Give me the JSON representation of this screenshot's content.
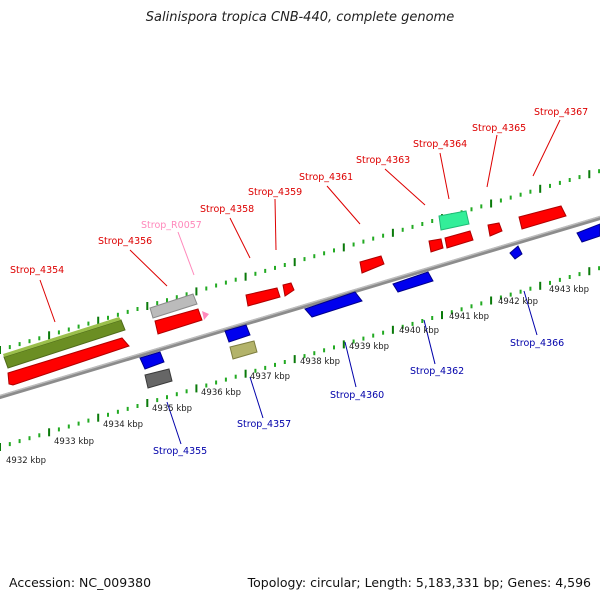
{
  "title": "Salinispora tropica CNB-440, complete genome",
  "footer": {
    "accession": "Accession: NC_009380",
    "summary": "Topology: circular; Length: 5,183,331 bp; Genes: 4,596"
  },
  "colors": {
    "forward": "#ff0000",
    "reverse": "#0000ee",
    "rna": "#ff88bb",
    "selected": "#33ee99",
    "highlight": "#6b8e23",
    "backbone": "#999999",
    "ruler": "#119911"
  },
  "scale_labels": [
    "4932 kbp",
    "4933 kbp",
    "4934 kbp",
    "4935 kbp",
    "4936 kbp",
    "4937 kbp",
    "4938 kbp",
    "4939 kbp",
    "4940 kbp",
    "4941 kbp",
    "4942 kbp",
    "4943 kbp"
  ],
  "forward_labels": [
    "Strop_4354",
    "Strop_4356",
    "Strop_R0057",
    "Strop_4358",
    "Strop_4359",
    "Strop_4361",
    "Strop_4363",
    "Strop_4364",
    "Strop_4365",
    "Strop_4367"
  ],
  "reverse_labels": [
    "Strop_4355",
    "Strop_4357",
    "Strop_4360",
    "Strop_4362",
    "Strop_4366"
  ]
}
